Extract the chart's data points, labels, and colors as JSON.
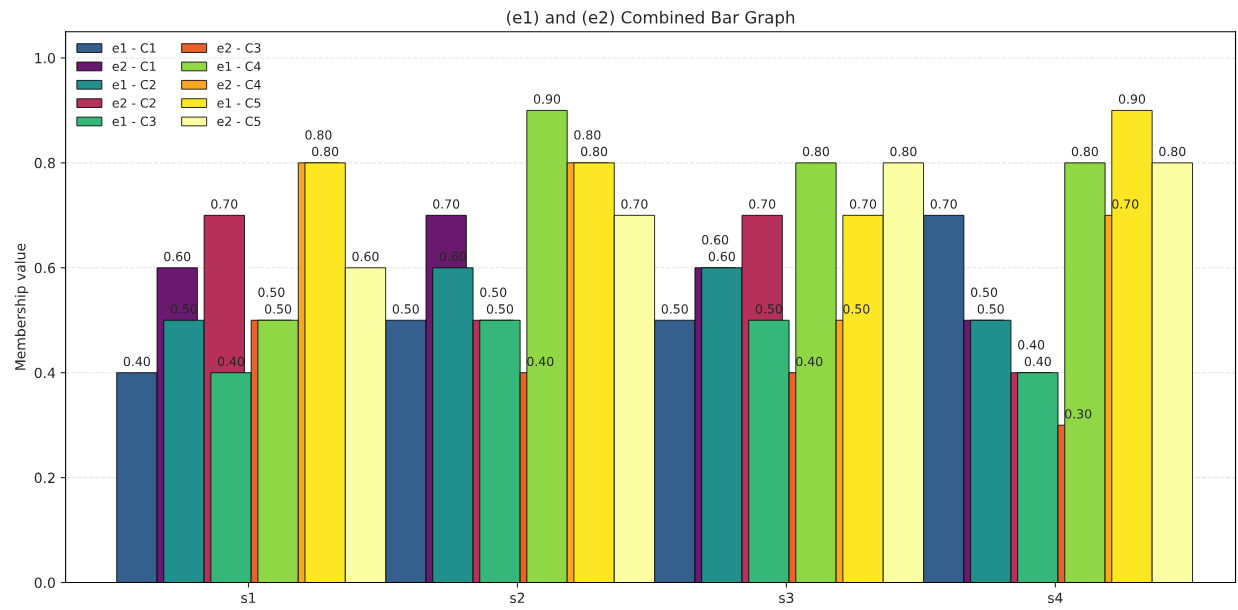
{
  "chart_data": {
    "type": "bar",
    "title": "(e1) and (e2) Combined Bar Graph",
    "ylabel": "Membership value",
    "categories": [
      "s1",
      "s2",
      "s3",
      "s4"
    ],
    "series": [
      {
        "name": "e1 - C1",
        "color": "#355f8d",
        "values": [
          0.4,
          0.5,
          0.5,
          0.7
        ],
        "value_labels": [
          "0.40",
          "0.50",
          "0.50",
          "0.70"
        ]
      },
      {
        "name": "e2 - C1",
        "color": "#6a1a6e",
        "values": [
          0.6,
          0.7,
          0.6,
          0.5
        ],
        "value_labels": [
          "0.60",
          "0.70",
          "0.60",
          "0.50"
        ]
      },
      {
        "name": "e1 - C2",
        "color": "#21908d",
        "values": [
          0.5,
          0.6,
          0.6,
          0.5
        ],
        "value_labels": [
          "0.50",
          "0.60",
          "0.60",
          "0.50"
        ]
      },
      {
        "name": "e2 - C2",
        "color": "#b5305a",
        "values": [
          0.7,
          0.5,
          0.7,
          0.4
        ],
        "value_labels": [
          "0.70",
          "0.50",
          "0.70",
          "0.40"
        ]
      },
      {
        "name": "e1 - C3",
        "color": "#35b779",
        "values": [
          0.4,
          0.5,
          0.5,
          0.4
        ],
        "value_labels": [
          "0.40",
          "0.50",
          "0.50",
          "0.40"
        ]
      },
      {
        "name": "e2 - C3",
        "color": "#e8622a",
        "values": [
          0.5,
          0.4,
          0.4,
          0.3
        ],
        "value_labels": [
          "0.50",
          "0.40",
          "0.40",
          "0.30"
        ]
      },
      {
        "name": "e1 - C4",
        "color": "#8fd744",
        "values": [
          0.5,
          0.9,
          0.8,
          0.8
        ],
        "value_labels": [
          "0.50",
          "0.90",
          "0.80",
          "0.80"
        ]
      },
      {
        "name": "e2 - C4",
        "color": "#f9a620",
        "values": [
          0.8,
          0.8,
          0.5,
          0.7
        ],
        "value_labels": [
          "0.80",
          "0.80",
          "0.50",
          "0.70"
        ]
      },
      {
        "name": "e1 - C5",
        "color": "#fde725",
        "values": [
          0.8,
          0.8,
          0.7,
          0.9
        ],
        "value_labels": [
          "0.80",
          "0.80",
          "0.70",
          "0.90"
        ]
      },
      {
        "name": "e2 - C5",
        "color": "#fcfea4",
        "values": [
          0.6,
          0.7,
          0.8,
          0.8
        ],
        "value_labels": [
          "0.60",
          "0.70",
          "0.80",
          "0.80"
        ]
      }
    ],
    "ylim": [
      0,
      1.05
    ],
    "yticks": [
      {
        "value": 0,
        "label": "0.0"
      },
      {
        "value": 0.2,
        "label": "0.2"
      },
      {
        "value": 0.4,
        "label": "0.4"
      },
      {
        "value": 0.6,
        "label": "0.6"
      },
      {
        "value": 0.8,
        "label": "0.8"
      },
      {
        "value": 1.0,
        "label": "1.0"
      }
    ],
    "grid": "y",
    "legend": "top left"
  }
}
